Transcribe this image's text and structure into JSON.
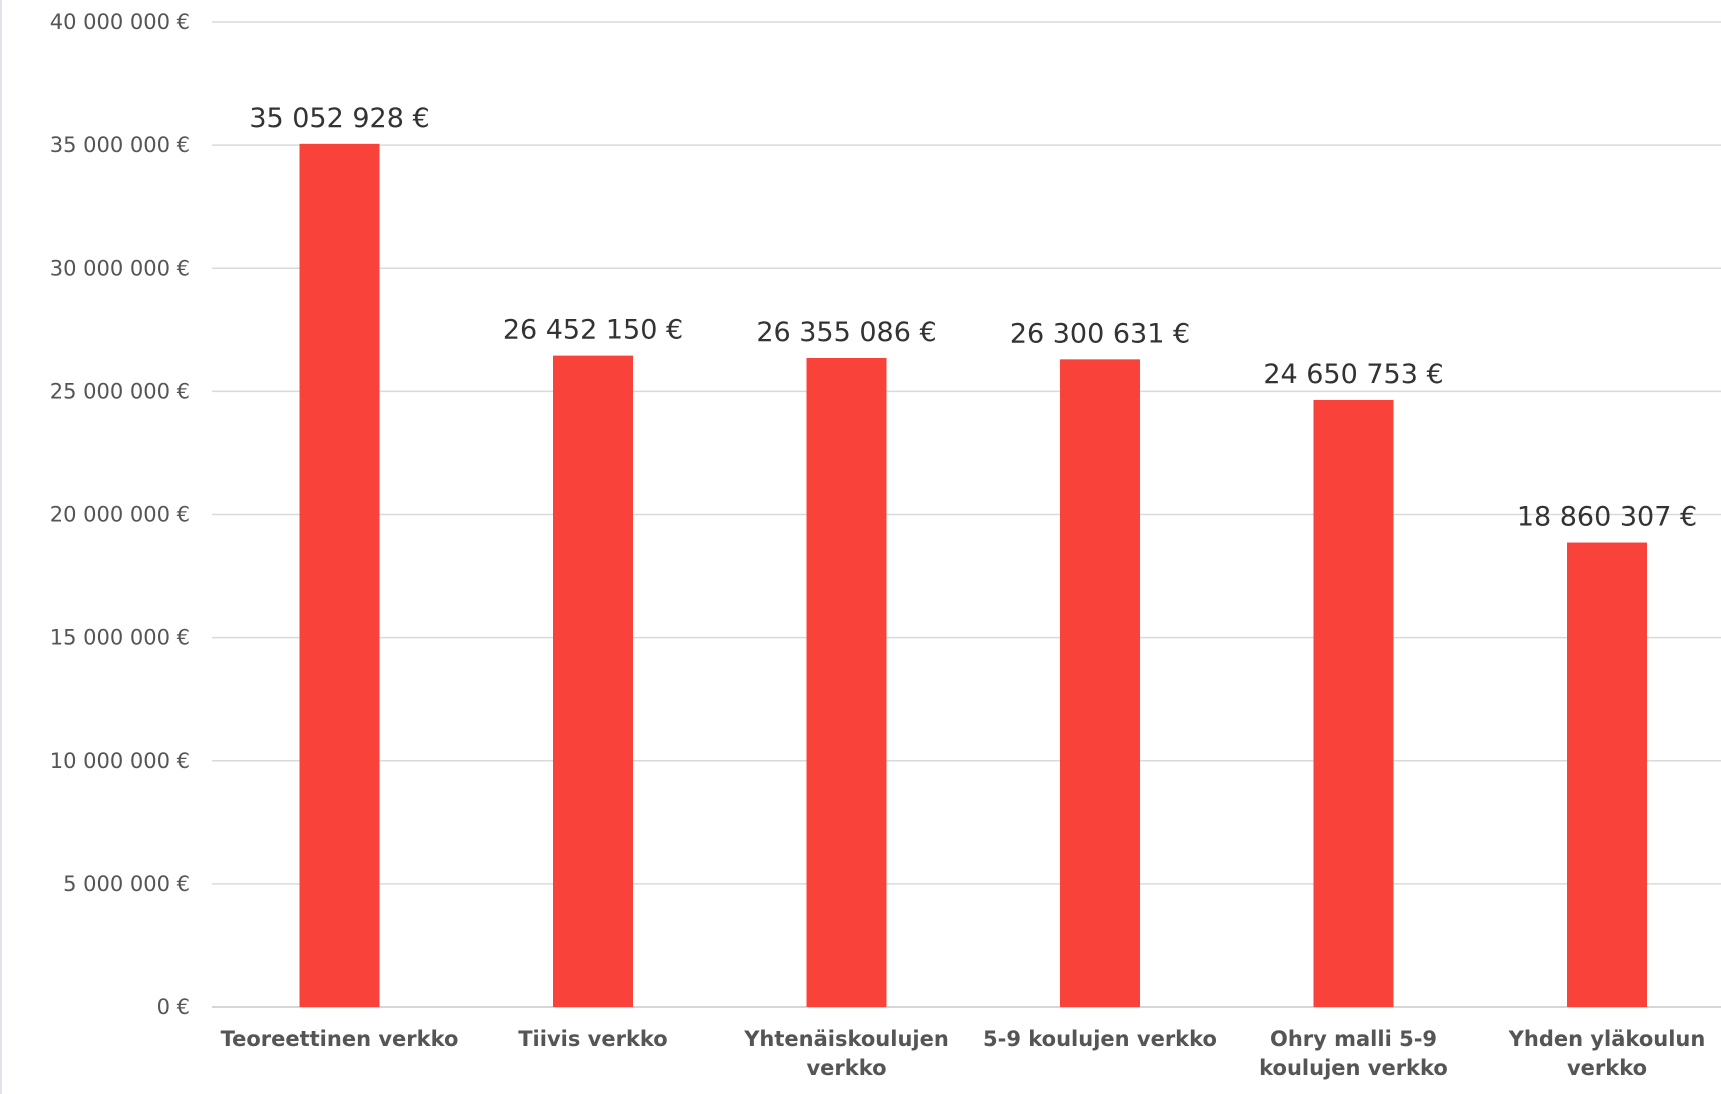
{
  "chart_data": {
    "type": "bar",
    "title": "",
    "xlabel": "",
    "ylabel": "",
    "ylim": [
      0,
      40000000
    ],
    "grid": true,
    "colors": {
      "bar": "#f9423a",
      "grid": "#d9d9d9"
    },
    "yticks": [
      0,
      5000000,
      10000000,
      15000000,
      20000000,
      25000000,
      30000000,
      35000000,
      40000000
    ],
    "ytick_labels": [
      "0 €",
      "5 000 000 €",
      "10 000 000 €",
      "15 000 000 €",
      "20 000 000 €",
      "25 000 000 €",
      "30 000 000 €",
      "35 000 000 €",
      "40 000 000 €"
    ],
    "categories": [
      [
        "Teoreettinen verkko"
      ],
      [
        "Tiivis verkko"
      ],
      [
        "Yhtenäiskoulujen",
        "verkko"
      ],
      [
        "5-9 koulujen verkko"
      ],
      [
        "Ohry malli 5-9",
        "koulujen verkko"
      ],
      [
        "Yhden yläkoulun",
        "verkko"
      ]
    ],
    "values": [
      35052928,
      26452150,
      26355086,
      26300631,
      24650753,
      18860307
    ],
    "data_labels": [
      "35 052 928 €",
      "26 452 150 €",
      "26 355 086 €",
      "26 300 631 €",
      "24 650 753 €",
      "18 860 307 €"
    ]
  }
}
